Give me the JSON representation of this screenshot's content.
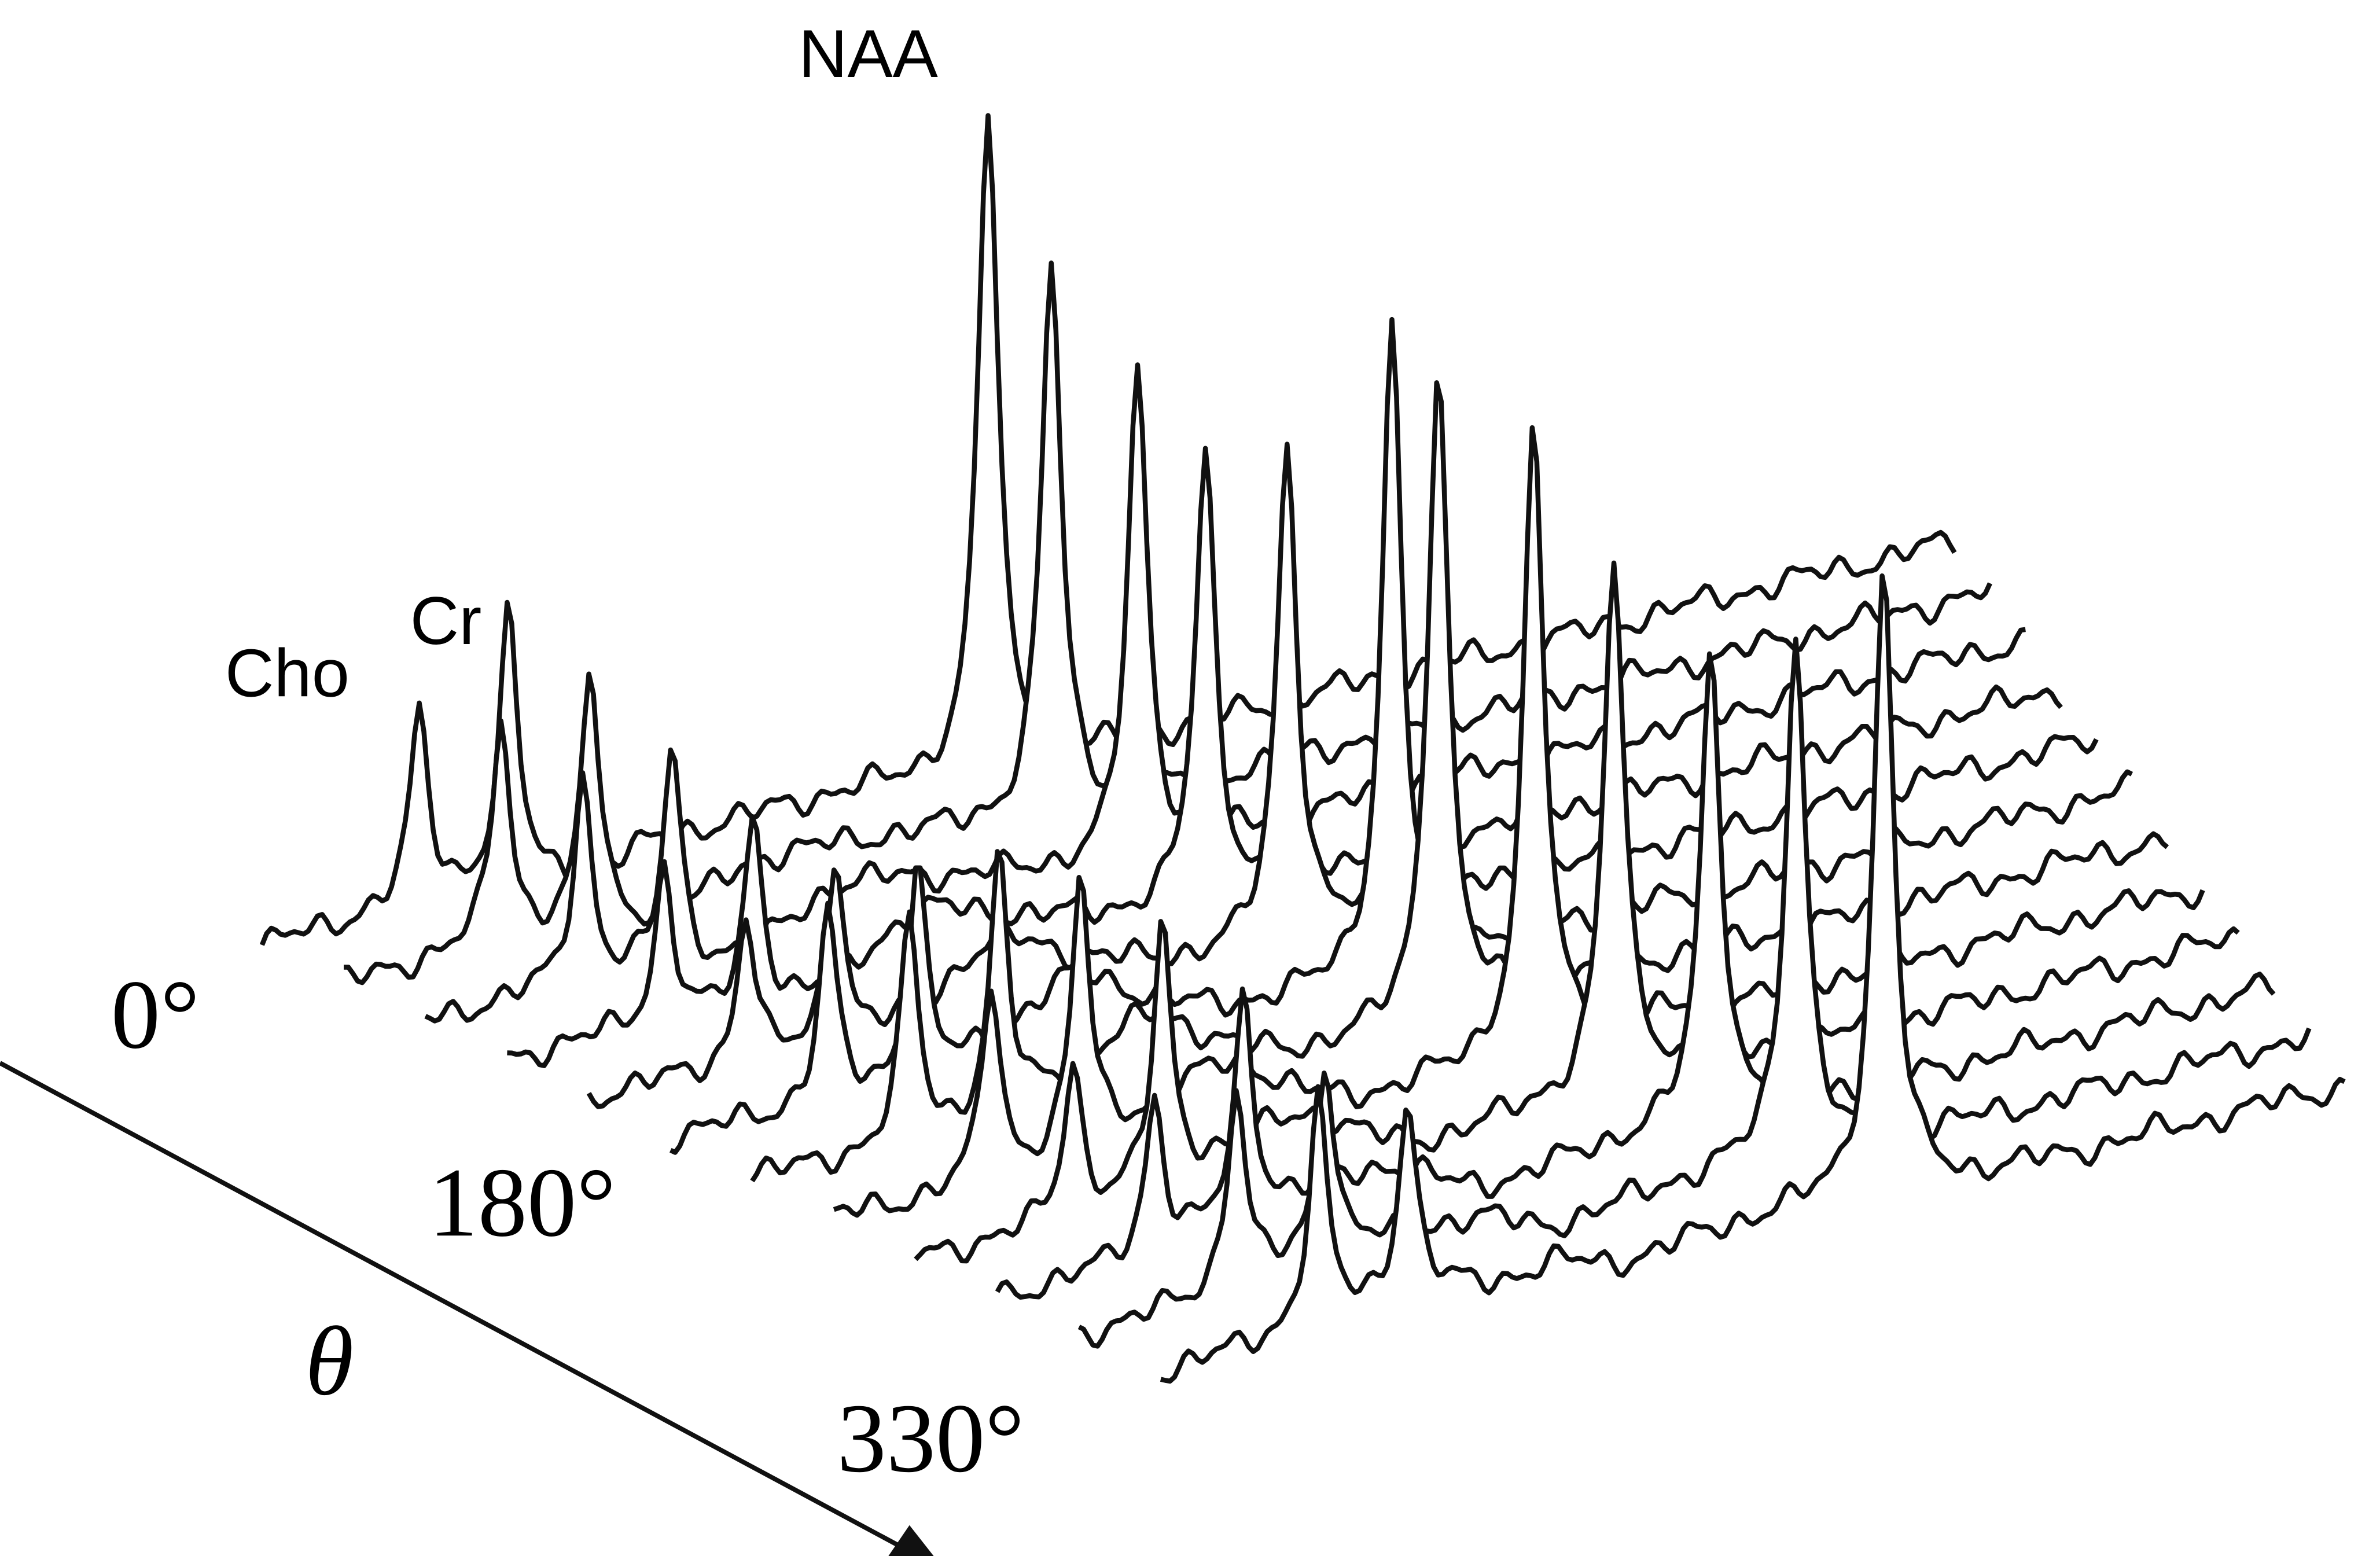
{
  "peak_labels": [
    "NAA",
    "Cr",
    "Cho"
  ],
  "angle_labels": [
    "0°",
    "180°",
    "330°"
  ],
  "axis_label": "θ"
}
